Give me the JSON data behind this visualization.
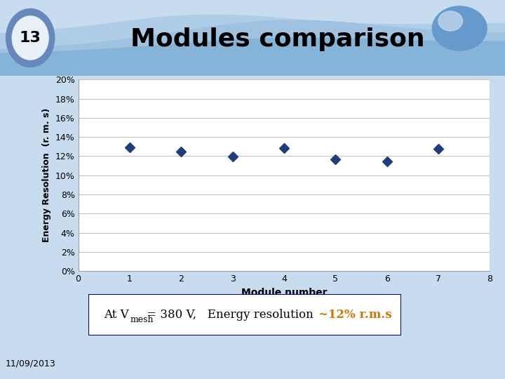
{
  "title": "Modules comparison",
  "slide_number": "13",
  "xlabel": "Module number",
  "ylabel": "Energy Resolution  (r. m. s)",
  "x_data": [
    1,
    2,
    3,
    4,
    5,
    6,
    7
  ],
  "y_data": [
    0.1295,
    0.1245,
    0.1195,
    0.1285,
    0.117,
    0.1145,
    0.1275
  ],
  "xlim": [
    0,
    8
  ],
  "ylim": [
    0,
    0.2
  ],
  "yticks": [
    0.0,
    0.02,
    0.04,
    0.06,
    0.08,
    0.1,
    0.12,
    0.14,
    0.16,
    0.18,
    0.2
  ],
  "ytick_labels": [
    "0%",
    "2%",
    "4%",
    "6%",
    "8%",
    "10%",
    "12%",
    "14%",
    "16%",
    "18%",
    "20%"
  ],
  "xticks": [
    0,
    1,
    2,
    3,
    4,
    5,
    6,
    7,
    8
  ],
  "marker_color": "#1F3D7A",
  "marker_size": 7,
  "grid_color": "#C0C0C0",
  "plot_bg_color": "#FFFFFF",
  "bg_color": "#C8DCF0",
  "header_color_light": "#B8D4EC",
  "annotation_fontsize": 12,
  "date_text": "11/09/2013",
  "title_fontsize": 26,
  "ann_black": "At V",
  "ann_sub": "mesh",
  "ann_black2": " = 380 V,   Energy resolution ",
  "ann_orange": "~12% r.m.s",
  "orange_color": "#CC7700",
  "navy_color": "#000080"
}
